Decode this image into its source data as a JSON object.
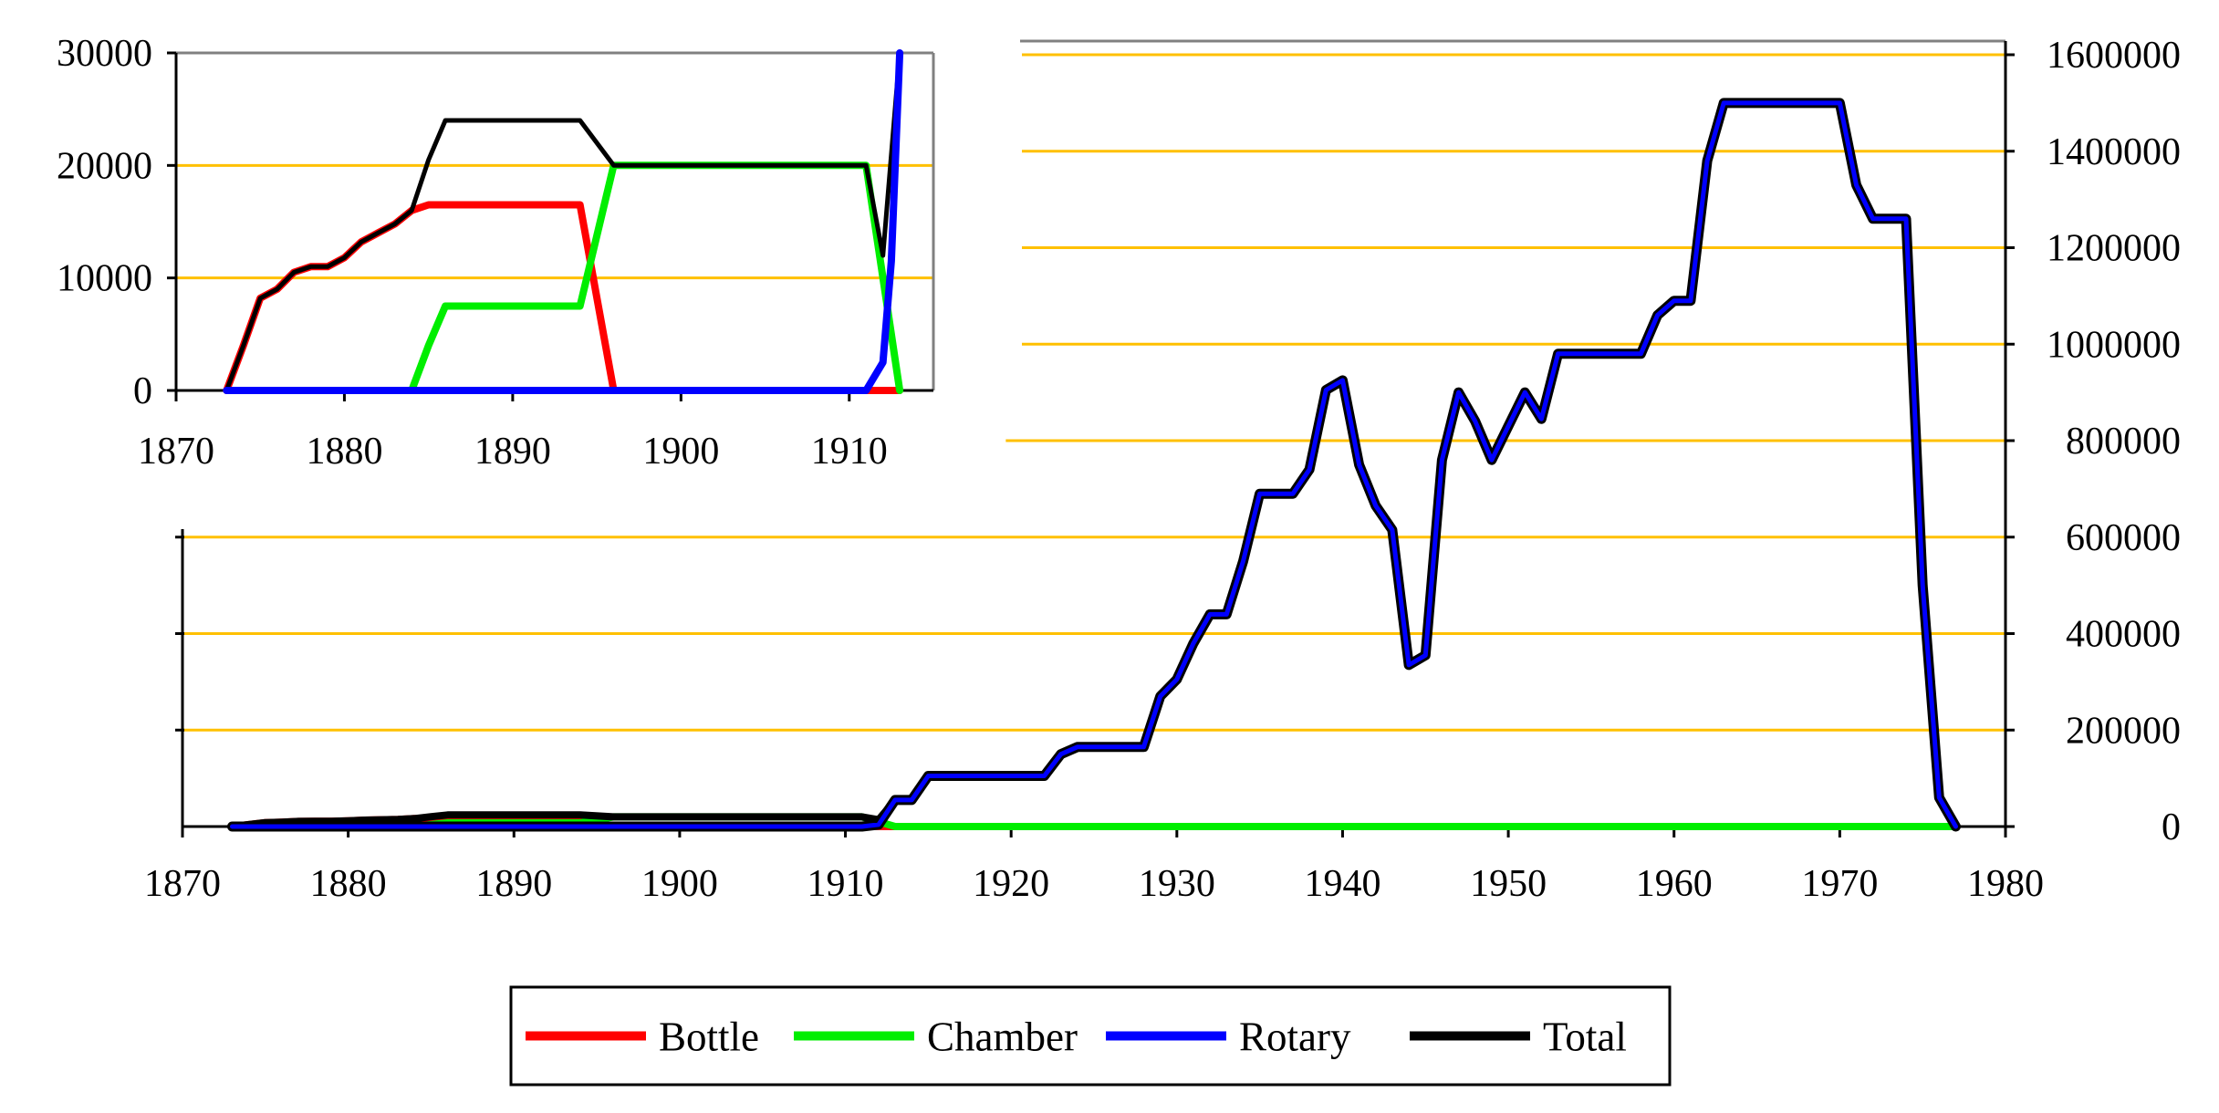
{
  "chart_data": [
    {
      "id": "main",
      "type": "line",
      "title": "",
      "xlabel": "",
      "ylabel": "",
      "xlim": [
        1870,
        1980
      ],
      "ylim": [
        0,
        1600000
      ],
      "x_ticks": [
        "1870",
        "1880",
        "1890",
        "1900",
        "1910",
        "1920",
        "1930",
        "1940",
        "1950",
        "1960",
        "1970",
        "1980"
      ],
      "y_ticks": [
        "0",
        "200000",
        "400000",
        "600000",
        "800000",
        "1000000",
        "1200000",
        "1400000",
        "1600000"
      ],
      "y_axis_side": "right",
      "grid": "horizontal",
      "series": [
        {
          "name": "Bottle",
          "color": "#ff0000",
          "points": [
            [
              1873,
              0
            ],
            [
              1875,
              8200
            ],
            [
              1876,
              9000
            ],
            [
              1877,
              10500
            ],
            [
              1878,
              11000
            ],
            [
              1879,
              11000
            ],
            [
              1880,
              11800
            ],
            [
              1881,
              13200
            ],
            [
              1882,
              14000
            ],
            [
              1883,
              14800
            ],
            [
              1884,
              16500
            ],
            [
              1885,
              16500
            ],
            [
              1894,
              16500
            ],
            [
              1896,
              0
            ],
            [
              1913,
              0
            ]
          ]
        },
        {
          "name": "Chamber",
          "color": "#00ee00",
          "points": [
            [
              1873,
              0
            ],
            [
              1884,
              0
            ],
            [
              1885,
              4000
            ],
            [
              1886,
              7500
            ],
            [
              1894,
              7500
            ],
            [
              1896,
              20000
            ],
            [
              1911,
              20000
            ],
            [
              1912,
              10000
            ],
            [
              1913,
              0
            ],
            [
              1977,
              0
            ]
          ]
        },
        {
          "name": "Rotary",
          "color": "#0000ff",
          "points": [
            [
              1873,
              0
            ],
            [
              1911,
              0
            ],
            [
              1912,
              4000
            ],
            [
              1913,
              55000
            ],
            [
              1914,
              55000
            ],
            [
              1915,
              105000
            ],
            [
              1922,
              105000
            ],
            [
              1923,
              150000
            ],
            [
              1924,
              165000
            ],
            [
              1928,
              165000
            ],
            [
              1929,
              270000
            ],
            [
              1930,
              305000
            ],
            [
              1931,
              380000
            ],
            [
              1932,
              440000
            ],
            [
              1933,
              440000
            ],
            [
              1934,
              550000
            ],
            [
              1935,
              690000
            ],
            [
              1937,
              690000
            ],
            [
              1938,
              740000
            ],
            [
              1939,
              905000
            ],
            [
              1940,
              925000
            ],
            [
              1941,
              750000
            ],
            [
              1942,
              665000
            ],
            [
              1943,
              615000
            ],
            [
              1944,
              335000
            ],
            [
              1945,
              355000
            ],
            [
              1946,
              760000
            ],
            [
              1947,
              900000
            ],
            [
              1948,
              840000
            ],
            [
              1949,
              760000
            ],
            [
              1950,
              830000
            ],
            [
              1951,
              900000
            ],
            [
              1952,
              845000
            ],
            [
              1953,
              980000
            ],
            [
              1958,
              980000
            ],
            [
              1959,
              1060000
            ],
            [
              1960,
              1090000
            ],
            [
              1961,
              1090000
            ],
            [
              1962,
              1380000
            ],
            [
              1963,
              1500000
            ],
            [
              1970,
              1500000
            ],
            [
              1971,
              1330000
            ],
            [
              1972,
              1260000
            ],
            [
              1974,
              1260000
            ],
            [
              1975,
              500000
            ],
            [
              1976,
              60000
            ],
            [
              1977,
              0
            ]
          ]
        },
        {
          "name": "Total",
          "color": "#000000",
          "points": [
            [
              1873,
              0
            ],
            [
              1875,
              8200
            ],
            [
              1876,
              9000
            ],
            [
              1877,
              10500
            ],
            [
              1878,
              11000
            ],
            [
              1879,
              11000
            ],
            [
              1880,
              11800
            ],
            [
              1881,
              13200
            ],
            [
              1882,
              14000
            ],
            [
              1883,
              14800
            ],
            [
              1884,
              16500
            ],
            [
              1885,
              20500
            ],
            [
              1886,
              24000
            ],
            [
              1894,
              24000
            ],
            [
              1896,
              20000
            ],
            [
              1911,
              20000
            ],
            [
              1912,
              14000
            ],
            [
              1913,
              55000
            ],
            [
              1914,
              55000
            ],
            [
              1915,
              105000
            ],
            [
              1922,
              105000
            ],
            [
              1923,
              150000
            ],
            [
              1924,
              165000
            ],
            [
              1928,
              165000
            ],
            [
              1929,
              270000
            ],
            [
              1930,
              305000
            ],
            [
              1931,
              380000
            ],
            [
              1932,
              440000
            ],
            [
              1933,
              440000
            ],
            [
              1934,
              550000
            ],
            [
              1935,
              690000
            ],
            [
              1937,
              690000
            ],
            [
              1938,
              740000
            ],
            [
              1939,
              905000
            ],
            [
              1940,
              925000
            ],
            [
              1941,
              750000
            ],
            [
              1942,
              665000
            ],
            [
              1943,
              615000
            ],
            [
              1944,
              335000
            ],
            [
              1945,
              355000
            ],
            [
              1946,
              760000
            ],
            [
              1947,
              900000
            ],
            [
              1948,
              840000
            ],
            [
              1949,
              760000
            ],
            [
              1950,
              830000
            ],
            [
              1951,
              900000
            ],
            [
              1952,
              845000
            ],
            [
              1953,
              980000
            ],
            [
              1958,
              980000
            ],
            [
              1959,
              1060000
            ],
            [
              1960,
              1090000
            ],
            [
              1961,
              1090000
            ],
            [
              1962,
              1380000
            ],
            [
              1963,
              1500000
            ],
            [
              1970,
              1500000
            ],
            [
              1971,
              1330000
            ],
            [
              1972,
              1260000
            ],
            [
              1974,
              1260000
            ],
            [
              1975,
              500000
            ],
            [
              1976,
              60000
            ],
            [
              1977,
              0
            ]
          ]
        }
      ]
    },
    {
      "id": "inset",
      "type": "line",
      "title": "",
      "xlabel": "",
      "ylabel": "",
      "xlim": [
        1870,
        1915
      ],
      "ylim": [
        0,
        30000
      ],
      "x_ticks": [
        "1870",
        "1880",
        "1890",
        "1900",
        "1910"
      ],
      "y_ticks": [
        "0",
        "10000",
        "20000",
        "30000"
      ],
      "y_axis_side": "left",
      "grid": "horizontal",
      "series": [
        {
          "name": "Bottle",
          "color": "#ff0000",
          "points": [
            [
              1873,
              0
            ],
            [
              1874,
              4000
            ],
            [
              1875,
              8200
            ],
            [
              1876,
              9000
            ],
            [
              1877,
              10500
            ],
            [
              1878,
              11000
            ],
            [
              1879,
              11000
            ],
            [
              1880,
              11800
            ],
            [
              1881,
              13200
            ],
            [
              1882,
              14000
            ],
            [
              1883,
              14800
            ],
            [
              1884,
              16000
            ],
            [
              1885,
              16500
            ],
            [
              1894,
              16500
            ],
            [
              1896,
              0
            ],
            [
              1912,
              0
            ],
            [
              1913,
              0
            ]
          ]
        },
        {
          "name": "Chamber",
          "color": "#00ee00",
          "points": [
            [
              1884,
              0
            ],
            [
              1885,
              4000
            ],
            [
              1886,
              7500
            ],
            [
              1894,
              7500
            ],
            [
              1896,
              20000
            ],
            [
              1911,
              20000
            ],
            [
              1912,
              10000
            ],
            [
              1913,
              0
            ]
          ]
        },
        {
          "name": "Rotary",
          "color": "#0000ff",
          "points": [
            [
              1873,
              0
            ],
            [
              1911,
              0
            ],
            [
              1912,
              2500
            ],
            [
              1912.5,
              11500
            ],
            [
              1913,
              30000
            ]
          ]
        },
        {
          "name": "Total",
          "color": "#000000",
          "points": [
            [
              1873,
              0
            ],
            [
              1874,
              4000
            ],
            [
              1875,
              8200
            ],
            [
              1876,
              9000
            ],
            [
              1877,
              10500
            ],
            [
              1878,
              11000
            ],
            [
              1879,
              11000
            ],
            [
              1880,
              11800
            ],
            [
              1881,
              13200
            ],
            [
              1882,
              14000
            ],
            [
              1883,
              14800
            ],
            [
              1884,
              16000
            ],
            [
              1885,
              20500
            ],
            [
              1886,
              24000
            ],
            [
              1894,
              24000
            ],
            [
              1896,
              20000
            ],
            [
              1911,
              20000
            ],
            [
              1912,
              12000
            ],
            [
              1913,
              30000
            ]
          ]
        }
      ]
    }
  ],
  "legend": {
    "placement": "bottom-center",
    "items": [
      {
        "label": "Bottle",
        "color": "#ff0000"
      },
      {
        "label": "Chamber",
        "color": "#00ee00"
      },
      {
        "label": "Rotary",
        "color": "#0000ff"
      },
      {
        "label": "Total",
        "color": "#000000"
      }
    ]
  },
  "colors": {
    "gridline": "#ffc000",
    "frame": "#808080",
    "rotary_outline": "#000000"
  }
}
